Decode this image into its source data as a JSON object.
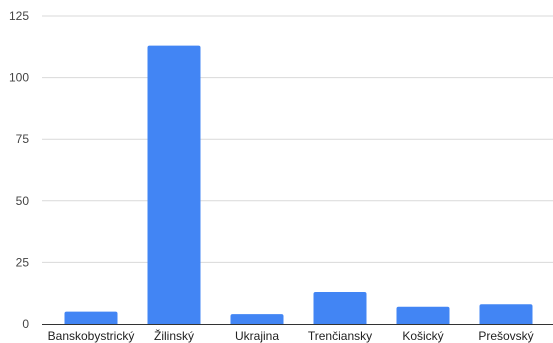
{
  "chart_data": {
    "type": "bar",
    "title": "",
    "xlabel": "",
    "ylabel": "",
    "categories": [
      "Banskobystrický",
      "Žilinský",
      "Ukrajina",
      "Trenčiansky",
      "Košický",
      "Prešovský"
    ],
    "values": [
      5,
      113,
      4,
      13,
      7,
      8
    ],
    "ylim": [
      0,
      125
    ],
    "yticks": [
      0,
      25,
      50,
      75,
      100,
      125
    ],
    "grid": true,
    "legend": "none",
    "colors": {
      "bar": "#4285f4",
      "grid": "#d9d9d9",
      "axis": "#333333"
    }
  }
}
